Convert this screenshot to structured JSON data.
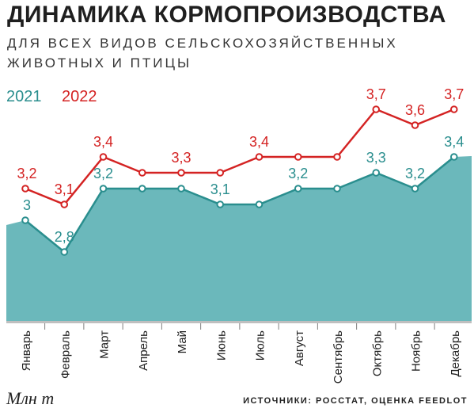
{
  "chart_data": {
    "type": "line",
    "title": "ДИНАМИКА КОРМОПРОИЗВОДСТВА",
    "subtitle": "ДЛЯ ВСЕХ ВИДОВ СЕЛЬСКОХОЗЯЙСТВЕННЫХ ЖИВОТНЫХ И ПТИЦЫ",
    "categories": [
      "Январь",
      "Февраль",
      "Март",
      "Апрель",
      "Май",
      "Июнь",
      "Июль",
      "Август",
      "Сентябрь",
      "Октябрь",
      "Ноябрь",
      "Декабрь"
    ],
    "series": [
      {
        "name": "2021",
        "values": [
          3.0,
          2.8,
          3.2,
          3.2,
          3.2,
          3.1,
          3.1,
          3.2,
          3.2,
          3.3,
          3.2,
          3.4
        ],
        "labels": [
          "3",
          "2,8",
          "3,2",
          "",
          "",
          "3,1",
          "",
          "3,2",
          "",
          "3,3",
          "3,2",
          "3,4"
        ],
        "color": "#2a8e8e",
        "fill": "#6bb8bb",
        "style": "area"
      },
      {
        "name": "2022",
        "values": [
          3.2,
          3.1,
          3.4,
          3.3,
          3.3,
          3.3,
          3.4,
          3.4,
          3.4,
          3.7,
          3.6,
          3.7
        ],
        "labels": [
          "3,2",
          "3,1",
          "3,4",
          "",
          "3,3",
          "",
          "3,4",
          "",
          "",
          "3,7",
          "3,6",
          "3,7"
        ],
        "color": "#d42323",
        "style": "line"
      }
    ],
    "ylabel": "Млн т",
    "ylim": [
      2.2,
      3.7
    ],
    "grid": false,
    "legend": "top-left",
    "source": "ИСТОЧНИКИ: РОССТАТ, ОЦЕНКА FEEDLOT"
  }
}
